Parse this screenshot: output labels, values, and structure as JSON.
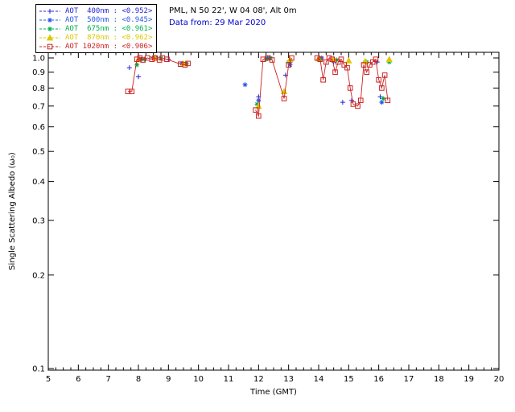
{
  "header": {
    "station_line": "PML, N 50 22', W 04 08', Alt 0m",
    "data_from_line": "Data from: 29 Mar 2020",
    "data_from_color": "#0000cc"
  },
  "legend": {
    "entries": [
      {
        "label": "AOT  400nm : <0.952>",
        "color": "#2525cf",
        "marker": "plus"
      },
      {
        "label": "AOT  500nm : <0.945>",
        "color": "#2a55ee",
        "marker": "asterisk"
      },
      {
        "label": "AOT  675nm : <0.961>",
        "color": "#00b050",
        "marker": "asterisk"
      },
      {
        "label": "AOT  870nm : <0.962>",
        "color": "#ddc700",
        "marker": "triangle"
      },
      {
        "label": "AOT 1020nm : <0.906>",
        "color": "#cc2222",
        "marker": "square"
      }
    ]
  },
  "chart_data": {
    "type": "scatter",
    "title": "",
    "xlabel": "Time (GMT)",
    "ylabel": "Single Scattering Albedo (ω₀)",
    "xlim": [
      5,
      20
    ],
    "ylim": [
      0.1,
      1.0
    ],
    "yscale": "log",
    "grid": false,
    "legend_position": "top-left",
    "xticks": [
      5,
      6,
      7,
      8,
      9,
      10,
      11,
      12,
      13,
      14,
      15,
      16,
      17,
      18,
      19,
      20
    ],
    "yticks": [
      1.0,
      0.9,
      0.8,
      0.7,
      0.6,
      0.5,
      0.4,
      0.3,
      0.2,
      0.1
    ],
    "series": [
      {
        "name": "AOT 400nm",
        "mean": "<0.952>",
        "color": "#2525cf",
        "marker": "plus",
        "line": false,
        "points": [
          [
            7.7,
            0.93
          ],
          [
            8.0,
            0.87
          ],
          [
            8.1,
            0.99
          ],
          [
            8.5,
            1.0
          ],
          [
            9.0,
            0.99
          ],
          [
            12.0,
            0.75
          ],
          [
            12.35,
            1.0
          ],
          [
            12.9,
            0.88
          ],
          [
            13.05,
            0.97
          ],
          [
            14.0,
            0.99
          ],
          [
            14.5,
            0.97
          ],
          [
            14.8,
            0.72
          ],
          [
            15.1,
            0.73
          ],
          [
            15.95,
            0.97
          ],
          [
            16.05,
            0.75
          ]
        ]
      },
      {
        "name": "AOT 500nm",
        "mean": "<0.945>",
        "color": "#2a55ee",
        "marker": "asterisk",
        "line": false,
        "points": [
          [
            8.05,
            0.99
          ],
          [
            8.6,
            1.0
          ],
          [
            9.45,
            0.96
          ],
          [
            11.55,
            0.82
          ],
          [
            12.0,
            0.73
          ],
          [
            12.3,
            1.0
          ],
          [
            13.05,
            0.95
          ],
          [
            14.1,
            1.0
          ],
          [
            14.55,
            0.98
          ],
          [
            15.55,
            0.97
          ],
          [
            16.1,
            0.72
          ]
        ]
      },
      {
        "name": "AOT 675nm",
        "mean": "<0.961>",
        "color": "#00b050",
        "marker": "asterisk",
        "line": false,
        "points": [
          [
            7.95,
            0.95
          ],
          [
            8.2,
            0.99
          ],
          [
            8.75,
            1.0
          ],
          [
            9.6,
            0.96
          ],
          [
            11.95,
            0.71
          ],
          [
            12.25,
            0.99
          ],
          [
            12.4,
            1.0
          ],
          [
            13.0,
            0.97
          ],
          [
            14.05,
            0.99
          ],
          [
            14.6,
            0.985
          ],
          [
            15.6,
            0.97
          ],
          [
            16.15,
            0.74
          ],
          [
            16.35,
            0.97
          ]
        ]
      },
      {
        "name": "AOT 870nm",
        "mean": "<0.962>",
        "color": "#ddc700",
        "marker": "triangle",
        "line": false,
        "points": [
          [
            8.0,
            0.99
          ],
          [
            8.55,
            1.0
          ],
          [
            9.5,
            0.96
          ],
          [
            12.0,
            0.7
          ],
          [
            12.85,
            0.78
          ],
          [
            13.05,
            0.99
          ],
          [
            14.0,
            0.995
          ],
          [
            14.5,
            0.99
          ],
          [
            15.0,
            0.98
          ],
          [
            15.55,
            0.975
          ],
          [
            16.35,
            0.99
          ]
        ]
      },
      {
        "name": "AOT 1020nm",
        "mean": "<0.906>",
        "color": "#cc2222",
        "marker": "square",
        "line": true,
        "points": [
          [
            7.65,
            0.78
          ],
          [
            7.78,
            0.78
          ],
          [
            7.95,
            0.99
          ],
          [
            8.05,
            1.0
          ],
          [
            8.15,
            0.985
          ],
          [
            8.3,
            1.0
          ],
          [
            8.45,
            0.99
          ],
          [
            8.55,
            1.0
          ],
          [
            8.7,
            0.985
          ],
          [
            8.8,
            1.0
          ],
          [
            8.95,
            0.99
          ],
          [
            9.4,
            0.955
          ],
          [
            9.55,
            0.95
          ],
          [
            9.65,
            0.96
          ],
          [
            11.9,
            0.68
          ],
          [
            12.0,
            0.65
          ],
          [
            12.15,
            0.99
          ],
          [
            12.3,
            1.0
          ],
          [
            12.45,
            0.985
          ],
          [
            12.85,
            0.74
          ],
          [
            13.0,
            0.95
          ],
          [
            13.1,
            1.0
          ],
          [
            13.95,
            1.0
          ],
          [
            14.05,
            0.99
          ],
          [
            14.15,
            0.85
          ],
          [
            14.25,
            0.97
          ],
          [
            14.35,
            1.0
          ],
          [
            14.45,
            0.99
          ],
          [
            14.55,
            0.9
          ],
          [
            14.65,
            0.97
          ],
          [
            14.75,
            0.99
          ],
          [
            14.85,
            0.95
          ],
          [
            14.95,
            0.93
          ],
          [
            15.05,
            0.8
          ],
          [
            15.15,
            0.71
          ],
          [
            15.3,
            0.7
          ],
          [
            15.4,
            0.73
          ],
          [
            15.5,
            0.95
          ],
          [
            15.6,
            0.9
          ],
          [
            15.7,
            0.95
          ],
          [
            15.8,
            0.97
          ],
          [
            15.9,
            0.99
          ],
          [
            16.0,
            0.85
          ],
          [
            16.1,
            0.8
          ],
          [
            16.2,
            0.88
          ],
          [
            16.3,
            0.73
          ]
        ]
      }
    ]
  }
}
